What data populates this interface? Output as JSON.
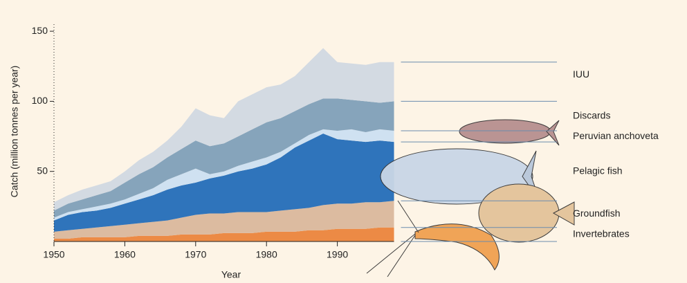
{
  "chart_data": {
    "type": "area",
    "y_label": "Catch (million tonnes per year)",
    "x_label": "Year",
    "x": [
      1950,
      1952,
      1954,
      1956,
      1958,
      1960,
      1962,
      1964,
      1966,
      1968,
      1970,
      1972,
      1974,
      1976,
      1978,
      1980,
      1982,
      1984,
      1986,
      1988,
      1990,
      1992,
      1994,
      1996,
      1998
    ],
    "xlim": [
      1950,
      2000
    ],
    "xticks": [
      1950,
      1960,
      1970,
      1980,
      1990
    ],
    "ylim": [
      0,
      155
    ],
    "yticks": [
      50,
      100,
      150
    ],
    "series": [
      {
        "name": "Invertebrates",
        "color": "#ec8a45",
        "values": [
          2,
          2,
          3,
          3,
          3,
          3,
          4,
          4,
          4,
          5,
          5,
          5,
          6,
          6,
          6,
          7,
          7,
          7,
          8,
          8,
          9,
          9,
          9,
          10,
          10
        ]
      },
      {
        "name": "Groundfish",
        "color": "#dcbba0",
        "values": [
          5,
          6,
          6,
          7,
          8,
          9,
          9,
          10,
          11,
          12,
          14,
          15,
          14,
          15,
          15,
          14,
          15,
          16,
          16,
          18,
          18,
          18,
          19,
          18,
          19
        ]
      },
      {
        "name": "Pelagic fish",
        "color": "#2f74bb",
        "values": [
          8,
          11,
          12,
          12,
          13,
          15,
          17,
          19,
          22,
          23,
          23,
          25,
          27,
          29,
          31,
          34,
          38,
          44,
          48,
          51,
          46,
          45,
          43,
          44,
          42
        ]
      },
      {
        "name": "Peruvian anchoveta",
        "color": "#cfe1f1",
        "values": [
          2,
          2,
          2,
          3,
          3,
          3,
          4,
          5,
          7,
          8,
          10,
          3,
          3,
          4,
          5,
          5,
          4,
          3,
          4,
          3,
          6,
          8,
          7,
          8,
          8
        ]
      },
      {
        "name": "Discards",
        "color": "#86a4bb",
        "values": [
          5,
          6,
          7,
          8,
          9,
          12,
          14,
          15,
          16,
          18,
          20,
          20,
          20,
          21,
          23,
          25,
          24,
          23,
          22,
          22,
          23,
          21,
          22,
          19,
          21
        ]
      },
      {
        "name": "IUU",
        "color": "#d3dae2",
        "values": [
          6,
          6,
          7,
          7,
          7,
          8,
          10,
          11,
          12,
          16,
          23,
          22,
          18,
          25,
          25,
          25,
          24,
          25,
          30,
          36,
          26,
          26,
          26,
          29,
          28
        ]
      }
    ]
  }
}
